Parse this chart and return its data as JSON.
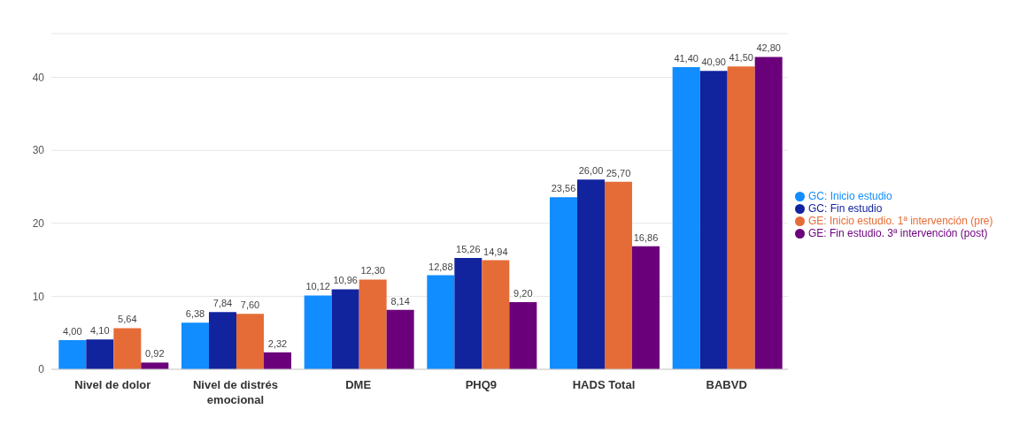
{
  "chart_data": {
    "type": "bar",
    "categories": [
      "Nivel de dolor",
      "Nivel de distrés emocional",
      "DME",
      "PHQ9",
      "HADS Total",
      "BABVD"
    ],
    "series": [
      {
        "name": "GC: Inicio estudio",
        "color": "#118dff",
        "values": [
          4.0,
          6.38,
          10.12,
          12.88,
          23.56,
          41.4
        ],
        "value_labels": [
          "4,00",
          "6,38",
          "10,12",
          "12,88",
          "23,56",
          "41,40"
        ]
      },
      {
        "name": "GC: Fin estudio",
        "color": "#12239e",
        "values": [
          4.1,
          7.84,
          10.96,
          15.26,
          26.0,
          40.9
        ],
        "value_labels": [
          "4,10",
          "7,84",
          "10,96",
          "15,26",
          "26,00",
          "40,90"
        ]
      },
      {
        "name": "GE: Inicio estudio. 1ª intervención (pre)",
        "color": "#e66c37",
        "values": [
          5.64,
          7.6,
          12.3,
          14.94,
          25.7,
          41.5
        ],
        "value_labels": [
          "5,64",
          "7,60",
          "12,30",
          "14,94",
          "25,70",
          "41,50"
        ]
      },
      {
        "name": "GE: Fin estudio. 3ª intervención (post)",
        "color": "#6b007b",
        "values": [
          0.92,
          2.32,
          8.14,
          9.2,
          16.86,
          42.8
        ],
        "value_labels": [
          "0,92",
          "2,32",
          "8,14",
          "9,20",
          "16,86",
          "42,80"
        ]
      }
    ],
    "ylim": [
      0,
      46
    ],
    "yticks": [
      0,
      10,
      20,
      30,
      40
    ],
    "grid": "y",
    "legend": "right"
  }
}
